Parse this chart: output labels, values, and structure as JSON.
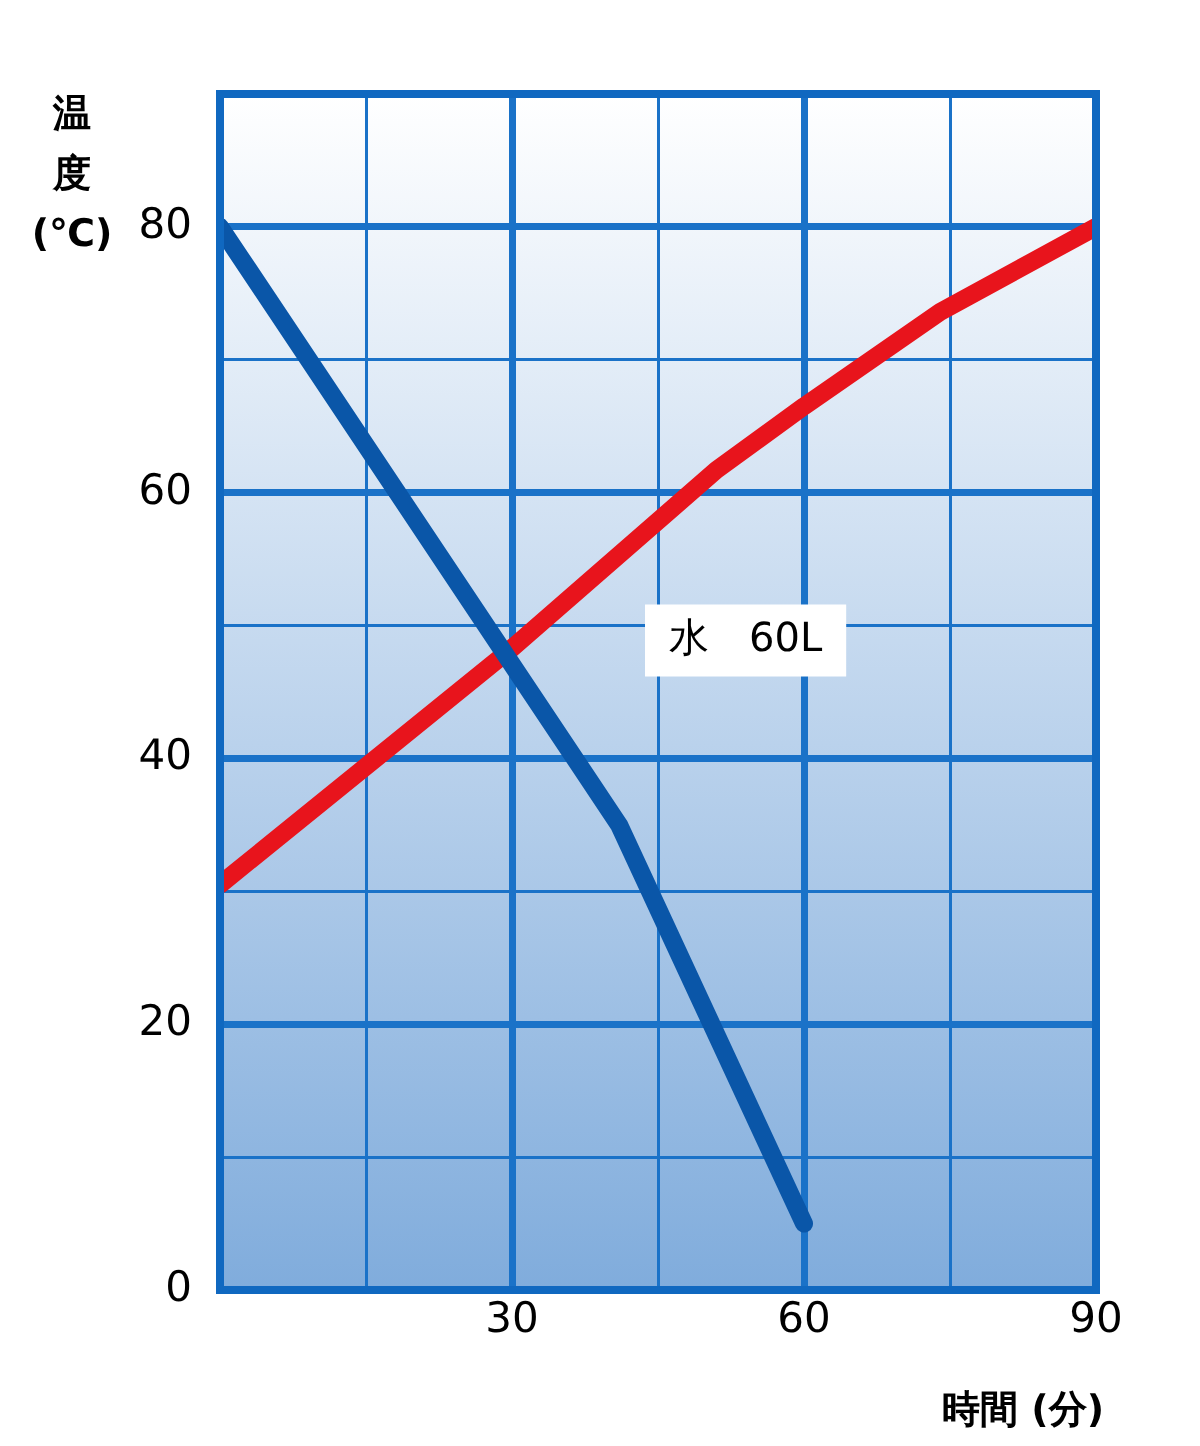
{
  "chart_data": {
    "type": "line",
    "xlabel": "時間 (分)",
    "ylabel": "温度(℃)",
    "xlim": [
      0,
      90
    ],
    "xticks": [
      {
        "value": 0,
        "label": null
      },
      {
        "value": 15,
        "label": null
      },
      30,
      {
        "value": 45,
        "label": null
      },
      60,
      {
        "value": 75,
        "label": null
      },
      90
    ],
    "ylim": [
      0,
      90
    ],
    "yticks": [
      0,
      {
        "value": 10,
        "label": null
      },
      20,
      {
        "value": 30,
        "label": null
      },
      40,
      {
        "value": 50,
        "label": null
      },
      60,
      {
        "value": 70,
        "label": null
      },
      80,
      {
        "value": 90,
        "label": null
      }
    ],
    "grid": true,
    "legend": false,
    "marker": "none",
    "line_style": "solid",
    "series": [
      {
        "color": "#0a56a8",
        "x": [
          0,
          41,
          60
        ],
        "values": [
          80,
          35,
          5
        ]
      },
      {
        "color": "#e8141c",
        "x": [
          0,
          30,
          51,
          60,
          74,
          90
        ],
        "values": [
          30.5,
          48.3,
          61.7,
          66.5,
          73.6,
          80
        ]
      }
    ],
    "annotations": [
      "水　60L"
    ]
  }
}
